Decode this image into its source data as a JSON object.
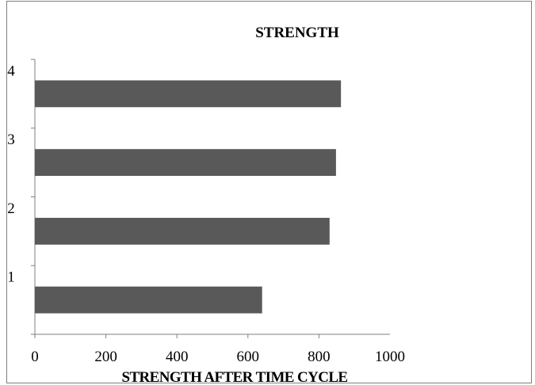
{
  "chart_data": {
    "type": "bar",
    "orientation": "horizontal",
    "title": "STRENGTH",
    "xlabel": "STRENGTH AFTER TIME CYCLE",
    "ylabel": "",
    "categories": [
      "1",
      "2",
      "3",
      "4"
    ],
    "values": [
      640,
      830,
      848,
      862
    ],
    "xlim": [
      0,
      1000
    ],
    "xticks": [
      0,
      200,
      400,
      600,
      800,
      1000
    ],
    "grid": false,
    "legend": "none",
    "bar_color": "#595959"
  }
}
